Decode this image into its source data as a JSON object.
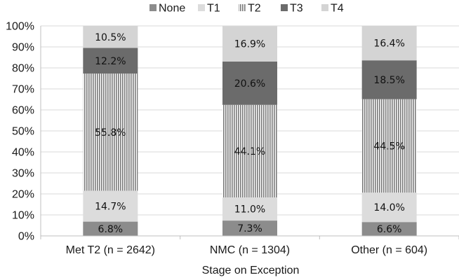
{
  "chart_data": {
    "type": "bar",
    "stacked": true,
    "percent": true,
    "categories": [
      "Met T2 (n = 2642)",
      "NMC (n = 1304)",
      "Other (n = 604)"
    ],
    "series": [
      {
        "name": "None",
        "values": [
          6.8,
          7.3,
          6.6
        ],
        "labels": [
          "6.8%",
          "7.3%",
          "6.6%"
        ],
        "color": "#8c8c8c",
        "pattern": "solid"
      },
      {
        "name": "T1",
        "values": [
          14.7,
          11.0,
          14.0
        ],
        "labels": [
          "14.7%",
          "11.0%",
          "14.0%"
        ],
        "color": "#dcdcdc",
        "pattern": "solid"
      },
      {
        "name": "T2",
        "values": [
          55.8,
          44.1,
          44.5
        ],
        "labels": [
          "55.8%",
          "44.1%",
          "44.5%"
        ],
        "color": "#7a7a7a",
        "pattern": "vertical-stripes"
      },
      {
        "name": "T3",
        "values": [
          12.2,
          20.6,
          18.5
        ],
        "labels": [
          "12.2%",
          "20.6%",
          "18.5%"
        ],
        "color": "#6b6b6b",
        "pattern": "solid"
      },
      {
        "name": "T4",
        "values": [
          10.5,
          16.9,
          16.4
        ],
        "labels": [
          "10.5%",
          "16.9%",
          "16.4%"
        ],
        "color": "#d4d4d4",
        "pattern": "solid"
      }
    ],
    "xlabel": "Stage on Exception",
    "ylabel": "",
    "ylim": [
      0,
      100
    ],
    "yticks": [
      "0%",
      "10%",
      "20%",
      "30%",
      "40%",
      "50%",
      "60%",
      "70%",
      "80%",
      "90%",
      "100%"
    ],
    "grid": true,
    "legend": "top"
  }
}
